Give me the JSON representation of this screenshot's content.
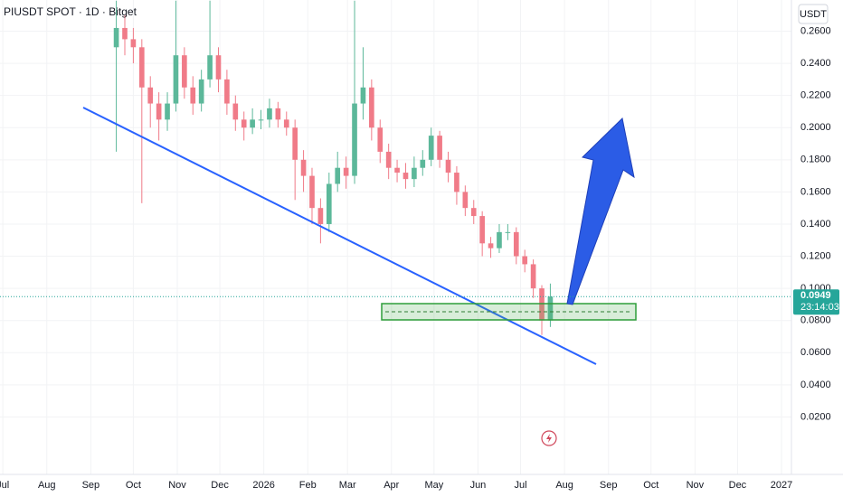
{
  "chart_data": {
    "type": "candlestick",
    "title": "PIUSDT SPOT · 1D · Bitget",
    "currency": "USDT",
    "x": [
      80,
      86,
      92,
      98,
      104,
      110,
      116,
      122,
      128,
      134,
      140,
      146,
      152,
      158,
      164,
      170,
      176,
      182,
      188,
      194,
      200,
      206,
      212,
      218,
      224,
      230,
      236,
      242,
      248,
      254,
      260,
      266,
      272,
      278,
      284,
      290,
      296,
      302,
      308,
      314,
      320,
      326,
      332,
      338,
      344,
      350,
      356,
      362,
      368,
      374,
      380,
      386
    ],
    "open": [
      0.25,
      0.262,
      0.255,
      0.25,
      0.225,
      0.215,
      0.205,
      0.215,
      0.245,
      0.225,
      0.215,
      0.23,
      0.245,
      0.23,
      0.215,
      0.205,
      0.2,
      0.205,
      0.205,
      0.212,
      0.205,
      0.2,
      0.18,
      0.17,
      0.15,
      0.14,
      0.165,
      0.175,
      0.17,
      0.215,
      0.225,
      0.2,
      0.185,
      0.175,
      0.172,
      0.168,
      0.175,
      0.18,
      0.195,
      0.18,
      0.172,
      0.16,
      0.15,
      0.145,
      0.128,
      0.125,
      0.135,
      0.135,
      0.12,
      0.115,
      0.1,
      0.08
    ],
    "high": [
      0.279,
      0.27,
      0.262,
      0.255,
      0.232,
      0.222,
      0.222,
      0.279,
      0.25,
      0.232,
      0.236,
      0.279,
      0.25,
      0.236,
      0.22,
      0.21,
      0.212,
      0.211,
      0.218,
      0.216,
      0.21,
      0.205,
      0.186,
      0.175,
      0.156,
      0.172,
      0.185,
      0.182,
      0.279,
      0.25,
      0.23,
      0.205,
      0.19,
      0.18,
      0.178,
      0.182,
      0.186,
      0.2,
      0.198,
      0.185,
      0.176,
      0.164,
      0.155,
      0.148,
      0.132,
      0.14,
      0.14,
      0.138,
      0.124,
      0.118,
      0.102,
      0.103
    ],
    "low": [
      0.185,
      0.245,
      0.24,
      0.153,
      0.2,
      0.192,
      0.198,
      0.21,
      0.218,
      0.208,
      0.21,
      0.225,
      0.222,
      0.208,
      0.198,
      0.192,
      0.196,
      0.199,
      0.2,
      0.2,
      0.195,
      0.155,
      0.16,
      0.14,
      0.128,
      0.135,
      0.16,
      0.162,
      0.165,
      0.205,
      0.192,
      0.178,
      0.168,
      0.166,
      0.162,
      0.163,
      0.17,
      0.176,
      0.175,
      0.166,
      0.152,
      0.145,
      0.14,
      0.12,
      0.119,
      0.122,
      0.13,
      0.115,
      0.11,
      0.094,
      0.071,
      0.076
    ],
    "close": [
      0.262,
      0.255,
      0.25,
      0.225,
      0.215,
      0.205,
      0.215,
      0.245,
      0.225,
      0.215,
      0.23,
      0.245,
      0.23,
      0.215,
      0.205,
      0.2,
      0.205,
      0.205,
      0.212,
      0.205,
      0.2,
      0.18,
      0.17,
      0.15,
      0.14,
      0.165,
      0.175,
      0.17,
      0.215,
      0.225,
      0.2,
      0.185,
      0.175,
      0.172,
      0.168,
      0.175,
      0.18,
      0.195,
      0.18,
      0.172,
      0.16,
      0.15,
      0.145,
      0.128,
      0.125,
      0.135,
      0.135,
      0.12,
      0.115,
      0.1,
      0.08,
      0.0949
    ],
    "up_color": "#5cb89a",
    "down_color": "#f07b88",
    "xlim": [
      -2,
      556
    ],
    "xticks": [
      {
        "value": 0,
        "label": "Jul"
      },
      {
        "value": 31,
        "label": "Aug"
      },
      {
        "value": 62,
        "label": "Sep"
      },
      {
        "value": 92,
        "label": "Oct"
      },
      {
        "value": 123,
        "label": "Nov"
      },
      {
        "value": 153,
        "label": "Dec"
      },
      {
        "value": 184,
        "label": "2026"
      },
      {
        "value": 215,
        "label": "Feb"
      },
      {
        "value": 243,
        "label": "Mar"
      },
      {
        "value": 274,
        "label": "Apr"
      },
      {
        "value": 304,
        "label": "May"
      },
      {
        "value": 335,
        "label": "Jun"
      },
      {
        "value": 365,
        "label": "Jul"
      },
      {
        "value": 396,
        "label": "Aug"
      },
      {
        "value": 427,
        "label": "Sep"
      },
      {
        "value": 457,
        "label": "Oct"
      },
      {
        "value": 488,
        "label": "Nov"
      },
      {
        "value": 518,
        "label": "Dec"
      },
      {
        "value": 549,
        "label": "2027"
      }
    ],
    "ylim": [
      0,
      0.2794
    ],
    "yticks": [
      {
        "value": 0.02,
        "label": "0.0200"
      },
      {
        "value": 0.04,
        "label": "0.0400"
      },
      {
        "value": 0.06,
        "label": "0.0600"
      },
      {
        "value": 0.08,
        "label": "0.0800"
      },
      {
        "value": 0.1,
        "label": "0.1000"
      },
      {
        "value": 0.12,
        "label": "0.1200"
      },
      {
        "value": 0.14,
        "label": "0.1400"
      },
      {
        "value": 0.16,
        "label": "0.1600"
      },
      {
        "value": 0.18,
        "label": "0.1800"
      },
      {
        "value": 0.2,
        "label": "0.2000"
      },
      {
        "value": 0.22,
        "label": "0.2200"
      },
      {
        "value": 0.24,
        "label": "0.2400"
      },
      {
        "value": 0.26,
        "label": "0.2600"
      }
    ],
    "grid": true,
    "last_price": 0.0949,
    "countdown": "23:14:03"
  }
}
